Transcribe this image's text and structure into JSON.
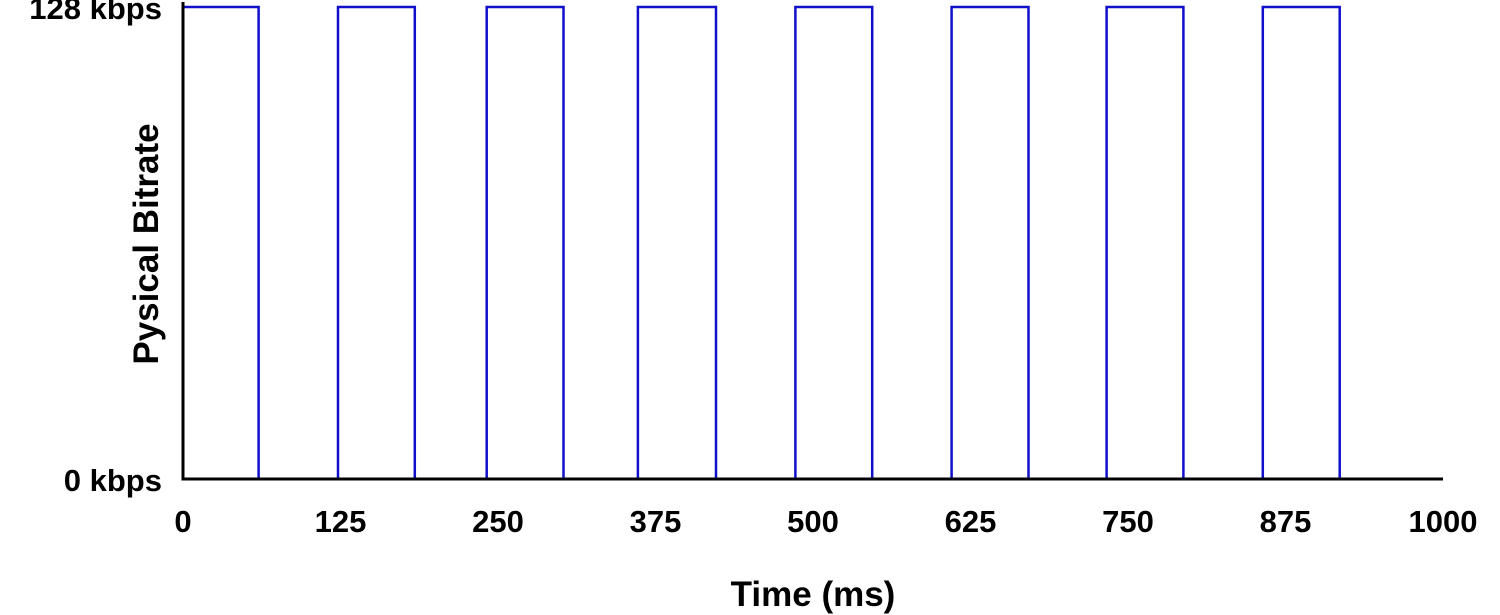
{
  "chart_data": {
    "type": "line",
    "title": "",
    "xlabel": "Time (ms)",
    "ylabel": "Pysical Bitrate",
    "xlim": [
      0,
      1000
    ],
    "ylim": [
      0,
      128
    ],
    "x_ticks": [
      0,
      125,
      250,
      375,
      500,
      625,
      750,
      875,
      1000
    ],
    "x_tick_labels": [
      "0",
      "125",
      "250",
      "375",
      "500",
      "625",
      "750",
      "875",
      "1000"
    ],
    "y_ticks": [
      0,
      128
    ],
    "y_tick_labels": [
      "0 kbps",
      "128 kbps"
    ],
    "grid": false,
    "legend": "none",
    "series": [
      {
        "color": "#1010cc",
        "x": [
          0,
          0,
          60,
          60,
          123,
          123,
          184,
          184,
          241,
          241,
          302,
          302,
          361,
          361,
          423,
          423,
          486,
          486,
          547,
          547,
          610,
          610,
          671,
          671,
          733,
          733,
          794,
          794,
          857,
          857,
          918,
          918,
          1000
        ],
        "y": [
          0,
          128,
          128,
          0,
          0,
          128,
          128,
          0,
          0,
          128,
          128,
          0,
          0,
          128,
          128,
          0,
          0,
          128,
          128,
          0,
          0,
          128,
          128,
          0,
          0,
          128,
          128,
          0,
          0,
          128,
          128,
          0,
          0
        ]
      }
    ],
    "axis_color": "#000000"
  }
}
